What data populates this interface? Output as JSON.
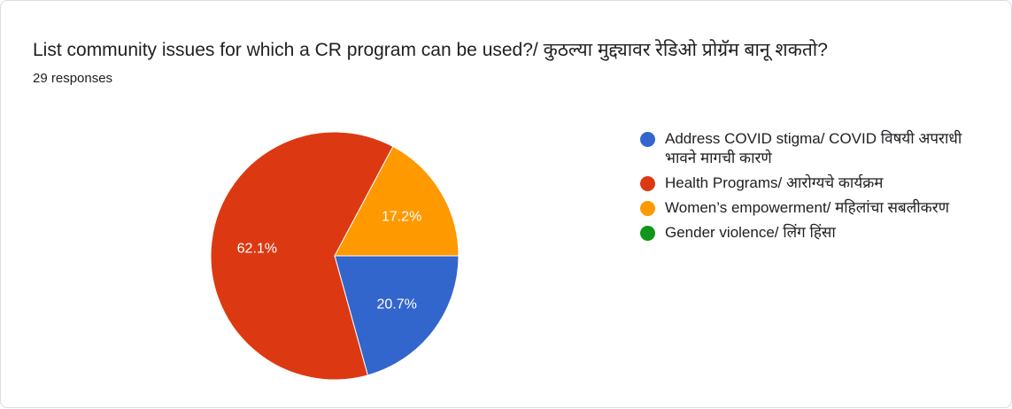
{
  "header": {
    "title": "List community issues for which a CR program can be used?/ कुठल्या मुद्द्यावर रेडिओ प्रोग्रॅम बानू शकतो?",
    "responses": "29 responses"
  },
  "chart_data": {
    "type": "pie",
    "legend_position": "right",
    "slices": [
      {
        "label": "Address COVID stigma/ COVID विषयी अपराधी भावने मागची कारणे",
        "value": 20.7,
        "display": "20.7%",
        "color": "#3366cc"
      },
      {
        "label": "Health Programs/ आरोग्यचे कार्यक्रम",
        "value": 62.1,
        "display": "62.1%",
        "color": "#dc3912"
      },
      {
        "label": "Women’s empowerment/ महिलांचा सबलीकरण",
        "value": 17.2,
        "display": "17.2%",
        "color": "#ff9900"
      },
      {
        "label": "Gender violence/ लिंग हिंसा",
        "value": 0,
        "display": "",
        "color": "#109618"
      }
    ]
  }
}
